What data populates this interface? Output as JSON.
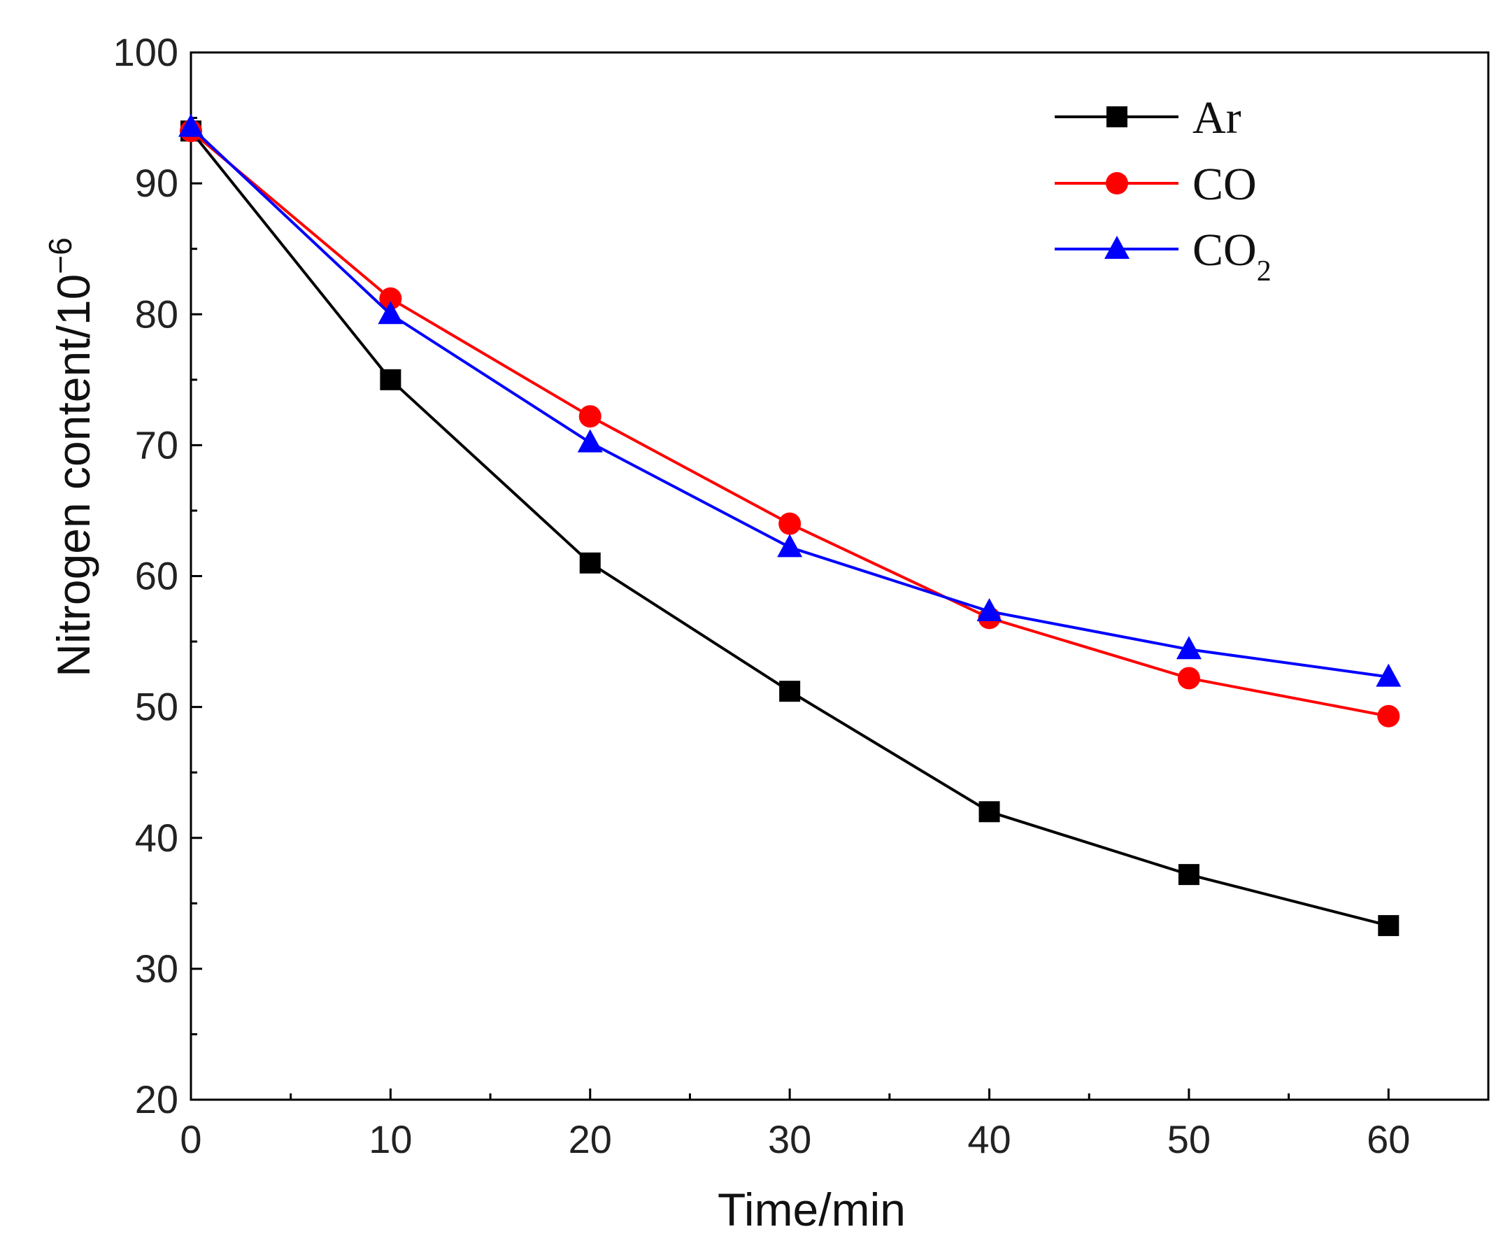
{
  "chart_data": {
    "type": "line",
    "title": "",
    "xlabel": "Time/min",
    "ylabel": "Nitrogen content/10",
    "ylabel_superscript": "−6",
    "x": [
      0,
      10,
      20,
      30,
      40,
      50,
      60
    ],
    "xlim": [
      0,
      65
    ],
    "ylim": [
      20,
      100
    ],
    "xticks": [
      0,
      10,
      20,
      30,
      40,
      50,
      60
    ],
    "yticks": [
      20,
      30,
      40,
      50,
      60,
      70,
      80,
      90,
      100
    ],
    "grid": false,
    "legend": "top-right",
    "series": [
      {
        "name": "Ar",
        "label_main": "Ar",
        "label_sub": "",
        "color": "#000000",
        "marker": "square",
        "values": [
          94.0,
          75.0,
          61.0,
          51.2,
          42.0,
          37.2,
          33.3
        ]
      },
      {
        "name": "CO",
        "label_main": "CO",
        "label_sub": "",
        "color": "#ff0000",
        "marker": "circle",
        "values": [
          94.0,
          81.2,
          72.2,
          64.0,
          56.8,
          52.2,
          49.3
        ]
      },
      {
        "name": "CO2",
        "label_main": "CO",
        "label_sub": "2",
        "color": "#0000ff",
        "marker": "triangle",
        "values": [
          94.3,
          80.0,
          70.2,
          62.2,
          57.3,
          54.4,
          52.3
        ]
      }
    ]
  }
}
